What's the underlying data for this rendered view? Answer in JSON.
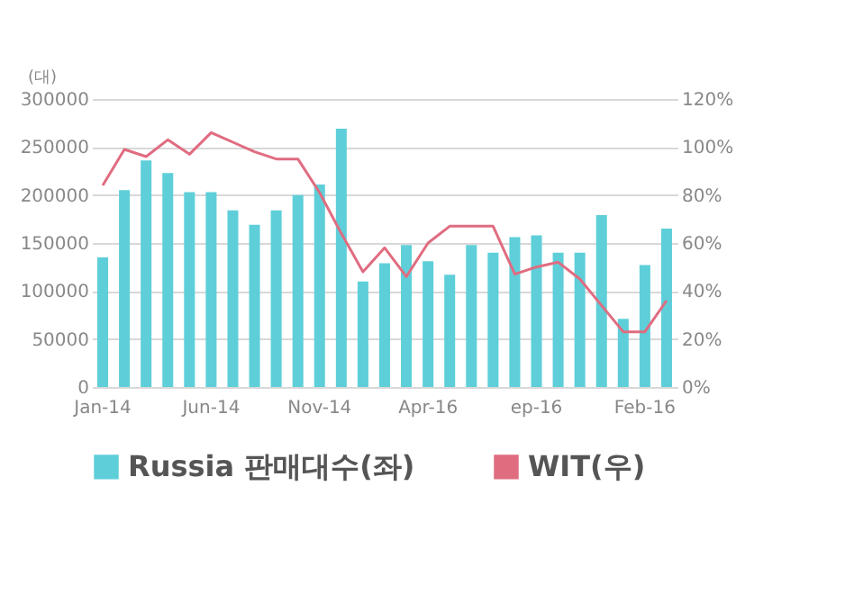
{
  "chart_data": {
    "type": "bar",
    "ylabel": "(대)",
    "categories": [
      "Jan-14",
      null,
      null,
      null,
      null,
      "Jun-14",
      null,
      null,
      null,
      null,
      "Nov-14",
      null,
      null,
      null,
      null,
      "Apr-16",
      null,
      null,
      null,
      null,
      "ep-16",
      null,
      null,
      null,
      null,
      "Feb-16",
      null
    ],
    "series": [
      {
        "name": "Russia 판매대수(좌)",
        "color": "#5ecfd9",
        "values": [
          135000,
          205000,
          236000,
          223000,
          203000,
          203000,
          184000,
          169000,
          184000,
          200000,
          211000,
          269000,
          110000,
          129000,
          148000,
          131000,
          117000,
          148000,
          140000,
          156000,
          158000,
          140000,
          140000,
          179000,
          71000,
          127000,
          165000
        ]
      },
      {
        "name": "WIT(우)",
        "type": "line",
        "axis": "y2",
        "color": "#e06c80",
        "values": [
          84,
          99,
          96,
          103,
          97,
          106,
          102,
          98,
          95,
          95,
          81,
          64,
          48,
          58,
          46,
          60,
          67,
          67,
          67,
          47,
          50,
          52,
          45,
          34,
          23,
          23,
          36
        ]
      }
    ],
    "ylim": [
      0,
      300000
    ],
    "yticks": [
      0,
      50000,
      100000,
      150000,
      200000,
      250000,
      300000
    ],
    "y2lim": [
      0,
      120
    ],
    "y2ticks": [
      {
        "value": 0,
        "label": "0%"
      },
      {
        "value": 20,
        "label": "20%"
      },
      {
        "value": 40,
        "label": "40%"
      },
      {
        "value": 60,
        "label": "60%"
      },
      {
        "value": 80,
        "label": "80%"
      },
      {
        "value": 100,
        "label": "100%"
      },
      {
        "value": 120,
        "label": "120%"
      }
    ],
    "grid": "y",
    "legend": "bottom"
  }
}
